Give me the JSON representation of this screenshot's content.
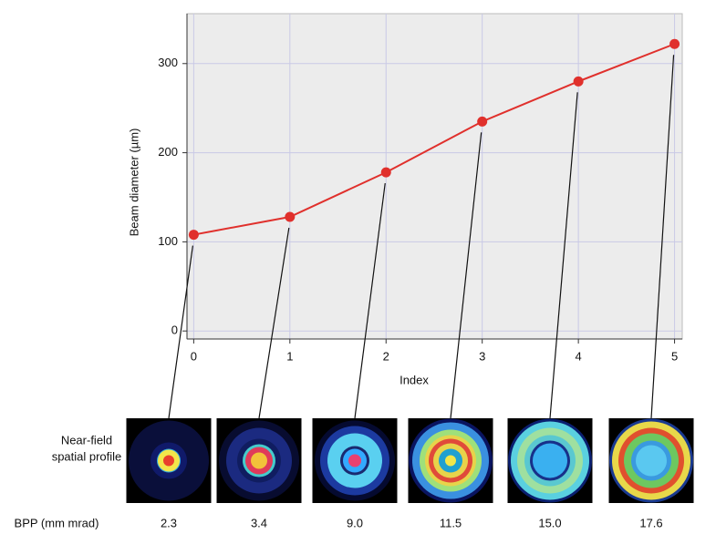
{
  "chart_data": {
    "type": "line",
    "x_label": "Index",
    "y_label": "Beam diameter (µm)",
    "x": [
      0,
      1,
      2,
      3,
      4,
      5
    ],
    "series": [
      {
        "color": "#e0302c",
        "values": [
          108,
          128,
          178,
          235,
          280,
          322
        ]
      }
    ],
    "xlim": [
      -0.07,
      5.08
    ],
    "ylim": [
      -9,
      356
    ],
    "xticks": [
      0,
      1,
      2,
      3,
      4,
      5
    ],
    "yticks": [
      0,
      100,
      200,
      300
    ],
    "grid": true
  },
  "profiles": {
    "label": [
      "Near-field",
      "spatial profile"
    ],
    "bpp_label": "BPP (mm mrad)",
    "bpp": [
      "2.3",
      "3.4",
      "9.0",
      "11.5",
      "15.0",
      "17.6"
    ]
  }
}
